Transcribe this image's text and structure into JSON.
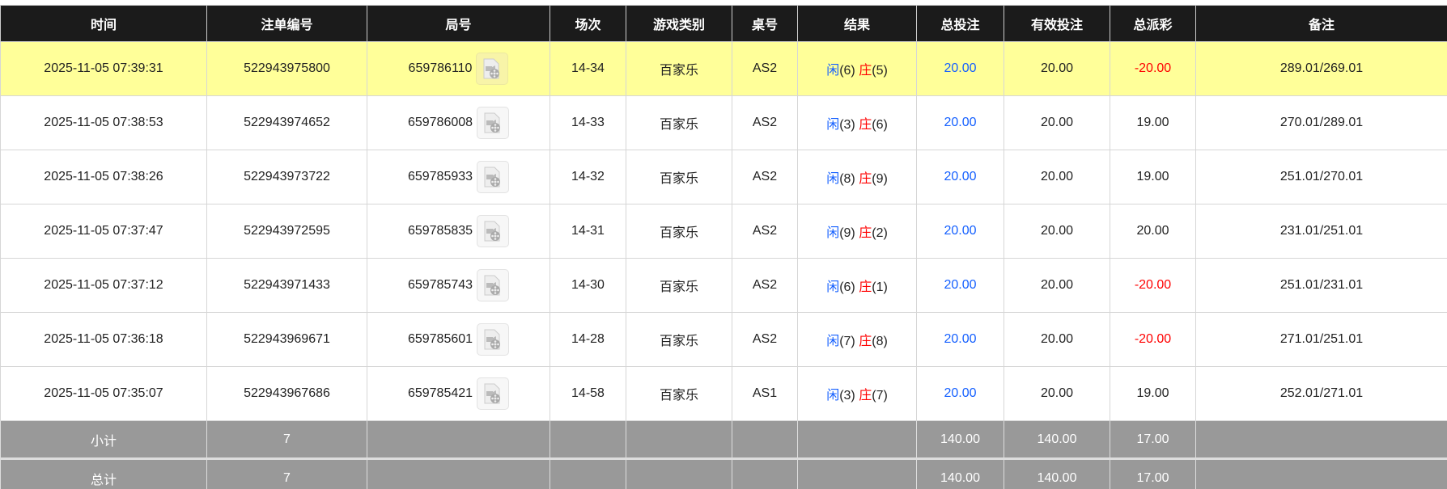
{
  "headers": [
    "时间",
    "注单编号",
    "局号",
    "场次",
    "游戏类别",
    "桌号",
    "结果",
    "总投注",
    "有效投注",
    "总派彩",
    "备注"
  ],
  "colors": {
    "header_bg": "#1b1b1b",
    "highlight": "#ffff99",
    "player": "#1560ff",
    "banker": "#ff0000",
    "summary_bg": "#999999"
  },
  "rows": [
    {
      "time": "2025-11-05 07:39:31",
      "bet_id": "522943975800",
      "round": "659786110",
      "shoe": "14-34",
      "game": "百家乐",
      "table": "AS2",
      "player_label": "闲",
      "player": "(6)",
      "banker_label": "庄",
      "banker": "(5)",
      "total_bet": "20.00",
      "valid_bet": "20.00",
      "payout": "-20.00",
      "note": "289.01/269.01",
      "highlight": true
    },
    {
      "time": "2025-11-05 07:38:53",
      "bet_id": "522943974652",
      "round": "659786008",
      "shoe": "14-33",
      "game": "百家乐",
      "table": "AS2",
      "player_label": "闲",
      "player": "(3)",
      "banker_label": "庄",
      "banker": "(6)",
      "total_bet": "20.00",
      "valid_bet": "20.00",
      "payout": "19.00",
      "note": "270.01/289.01"
    },
    {
      "time": "2025-11-05 07:38:26",
      "bet_id": "522943973722",
      "round": "659785933",
      "shoe": "14-32",
      "game": "百家乐",
      "table": "AS2",
      "player_label": "闲",
      "player": "(8)",
      "banker_label": "庄",
      "banker": "(9)",
      "total_bet": "20.00",
      "valid_bet": "20.00",
      "payout": "19.00",
      "note": "251.01/270.01"
    },
    {
      "time": "2025-11-05 07:37:47",
      "bet_id": "522943972595",
      "round": "659785835",
      "shoe": "14-31",
      "game": "百家乐",
      "table": "AS2",
      "player_label": "闲",
      "player": "(9)",
      "banker_label": "庄",
      "banker": "(2)",
      "total_bet": "20.00",
      "valid_bet": "20.00",
      "payout": "20.00",
      "note": "231.01/251.01"
    },
    {
      "time": "2025-11-05 07:37:12",
      "bet_id": "522943971433",
      "round": "659785743",
      "shoe": "14-30",
      "game": "百家乐",
      "table": "AS2",
      "player_label": "闲",
      "player": "(6)",
      "banker_label": "庄",
      "banker": "(1)",
      "total_bet": "20.00",
      "valid_bet": "20.00",
      "payout": "-20.00",
      "note": "251.01/231.01"
    },
    {
      "time": "2025-11-05 07:36:18",
      "bet_id": "522943969671",
      "round": "659785601",
      "shoe": "14-28",
      "game": "百家乐",
      "table": "AS2",
      "player_label": "闲",
      "player": "(7)",
      "banker_label": "庄",
      "banker": "(8)",
      "total_bet": "20.00",
      "valid_bet": "20.00",
      "payout": "-20.00",
      "note": "271.01/251.01"
    },
    {
      "time": "2025-11-05 07:35:07",
      "bet_id": "522943967686",
      "round": "659785421",
      "shoe": "14-58",
      "game": "百家乐",
      "table": "AS1",
      "player_label": "闲",
      "player": "(3)",
      "banker_label": "庄",
      "banker": "(7)",
      "total_bet": "20.00",
      "valid_bet": "20.00",
      "payout": "19.00",
      "note": "252.01/271.01"
    }
  ],
  "summary": [
    {
      "label": "小计",
      "count": "7",
      "total_bet": "140.00",
      "valid_bet": "140.00",
      "payout": "17.00"
    },
    {
      "label": "总计",
      "count": "7",
      "total_bet": "140.00",
      "valid_bet": "140.00",
      "payout": "17.00"
    }
  ]
}
